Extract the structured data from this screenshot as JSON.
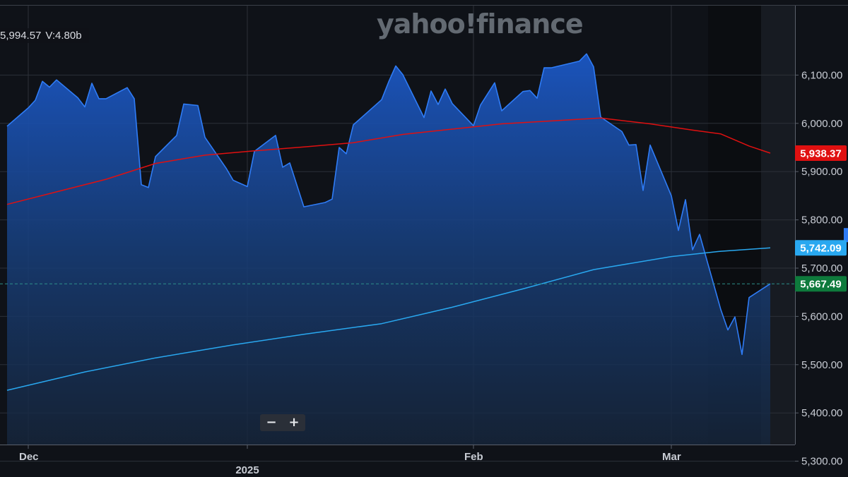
{
  "watermark": "yahoo!finance",
  "info": {
    "close": "5,994.57",
    "volume": "V:4.80b"
  },
  "zoom": {
    "minus": "−",
    "plus": "+"
  },
  "price_tags": [
    {
      "label": "5,938.37",
      "value": 5938.37,
      "color": "#e01010"
    },
    {
      "label": "5,742.09",
      "value": 5742.09,
      "color": "#29a8f0"
    },
    {
      "label": "5,667.49",
      "value": 5667.49,
      "color": "#0e7a3c"
    }
  ],
  "chart_data": {
    "type": "area",
    "ylim": [
      5300,
      6200
    ],
    "y_ticks": [
      "5,300.00",
      "5,400.00",
      "5,500.00",
      "5,600.00",
      "5,700.00",
      "5,800.00",
      "5,900.00",
      "6,000.00",
      "6,100.00"
    ],
    "y_tick_values": [
      5300,
      5400,
      5500,
      5600,
      5700,
      5800,
      5900,
      6000,
      6100
    ],
    "x_labels": [
      {
        "label": "Dec",
        "date": "2024-12-02"
      },
      {
        "label": "2025",
        "date": "2025-01-02"
      },
      {
        "label": "Feb",
        "date": "2025-02-03"
      },
      {
        "label": "Mar",
        "date": "2025-03-03"
      }
    ],
    "x_range": [
      "2024-11-30",
      "2025-03-20"
    ],
    "grid": true,
    "series": [
      {
        "kind": "area",
        "color": "#2f7cf6",
        "points": [
          [
            "2024-11-29",
            5994
          ],
          [
            "2024-12-02",
            6032
          ],
          [
            "2024-12-03",
            6048
          ],
          [
            "2024-12-04",
            6087
          ],
          [
            "2024-12-05",
            6075
          ],
          [
            "2024-12-06",
            6090
          ],
          [
            "2024-12-09",
            6053
          ],
          [
            "2024-12-10",
            6034
          ],
          [
            "2024-12-11",
            6083
          ],
          [
            "2024-12-12",
            6051
          ],
          [
            "2024-12-13",
            6051
          ],
          [
            "2024-12-16",
            6074
          ],
          [
            "2024-12-17",
            6051
          ],
          [
            "2024-12-18",
            5873
          ],
          [
            "2024-12-19",
            5867
          ],
          [
            "2024-12-20",
            5931
          ],
          [
            "2024-12-23",
            5975
          ],
          [
            "2024-12-24",
            6040
          ],
          [
            "2024-12-26",
            6037
          ],
          [
            "2024-12-27",
            5971
          ],
          [
            "2024-12-30",
            5907
          ],
          [
            "2024-12-31",
            5882
          ],
          [
            "2025-01-02",
            5869
          ],
          [
            "2025-01-03",
            5942
          ],
          [
            "2025-01-06",
            5975
          ],
          [
            "2025-01-07",
            5909
          ],
          [
            "2025-01-08",
            5918
          ],
          [
            "2025-01-10",
            5827
          ],
          [
            "2025-01-13",
            5836
          ],
          [
            "2025-01-14",
            5843
          ],
          [
            "2025-01-15",
            5950
          ],
          [
            "2025-01-16",
            5937
          ],
          [
            "2025-01-17",
            5997
          ],
          [
            "2025-01-21",
            6049
          ],
          [
            "2025-01-22",
            6086
          ],
          [
            "2025-01-23",
            6119
          ],
          [
            "2025-01-24",
            6101
          ],
          [
            "2025-01-27",
            6012
          ],
          [
            "2025-01-28",
            6067
          ],
          [
            "2025-01-29",
            6039
          ],
          [
            "2025-01-30",
            6071
          ],
          [
            "2025-01-31",
            6041
          ],
          [
            "2025-02-03",
            5995
          ],
          [
            "2025-02-04",
            6038
          ],
          [
            "2025-02-05",
            6061
          ],
          [
            "2025-02-06",
            6084
          ],
          [
            "2025-02-07",
            6026
          ],
          [
            "2025-02-10",
            6066
          ],
          [
            "2025-02-11",
            6068
          ],
          [
            "2025-02-12",
            6052
          ],
          [
            "2025-02-13",
            6115
          ],
          [
            "2025-02-14",
            6115
          ],
          [
            "2025-02-18",
            6129
          ],
          [
            "2025-02-19",
            6144
          ],
          [
            "2025-02-20",
            6117
          ],
          [
            "2025-02-21",
            6013
          ],
          [
            "2025-02-24",
            5983
          ],
          [
            "2025-02-25",
            5955
          ],
          [
            "2025-02-26",
            5956
          ],
          [
            "2025-02-27",
            5861
          ],
          [
            "2025-02-28",
            5955
          ],
          [
            "2025-03-03",
            5850
          ],
          [
            "2025-03-04",
            5778
          ],
          [
            "2025-03-05",
            5842
          ],
          [
            "2025-03-06",
            5738
          ],
          [
            "2025-03-07",
            5770
          ],
          [
            "2025-03-10",
            5614
          ],
          [
            "2025-03-11",
            5572
          ],
          [
            "2025-03-12",
            5599
          ],
          [
            "2025-03-13",
            5521
          ],
          [
            "2025-03-14",
            5639
          ],
          [
            "2025-03-17",
            5667.49
          ]
        ]
      },
      {
        "kind": "line",
        "color": "#e01010",
        "points": [
          [
            "2024-11-29",
            5832
          ],
          [
            "2024-12-06",
            5858
          ],
          [
            "2024-12-13",
            5884
          ],
          [
            "2024-12-20",
            5917
          ],
          [
            "2024-12-27",
            5934
          ],
          [
            "2025-01-03",
            5943
          ],
          [
            "2025-01-10",
            5951
          ],
          [
            "2025-01-17",
            5960
          ],
          [
            "2025-01-24",
            5977
          ],
          [
            "2025-01-31",
            5988
          ],
          [
            "2025-02-07",
            5999
          ],
          [
            "2025-02-14",
            6005
          ],
          [
            "2025-02-21",
            6011
          ],
          [
            "2025-02-28",
            5999
          ],
          [
            "2025-03-06",
            5986
          ],
          [
            "2025-03-10",
            5978
          ],
          [
            "2025-03-14",
            5953
          ],
          [
            "2025-03-17",
            5938.37
          ]
        ]
      },
      {
        "kind": "line",
        "color": "#29a8f0",
        "points": [
          [
            "2024-11-29",
            5447
          ],
          [
            "2024-12-10",
            5485
          ],
          [
            "2024-12-20",
            5514
          ],
          [
            "2024-12-31",
            5541
          ],
          [
            "2025-01-10",
            5563
          ],
          [
            "2025-01-21",
            5585
          ],
          [
            "2025-01-31",
            5619
          ],
          [
            "2025-02-10",
            5657
          ],
          [
            "2025-02-20",
            5697
          ],
          [
            "2025-03-03",
            5724
          ],
          [
            "2025-03-10",
            5735
          ],
          [
            "2025-03-17",
            5742.09
          ]
        ]
      }
    ]
  }
}
